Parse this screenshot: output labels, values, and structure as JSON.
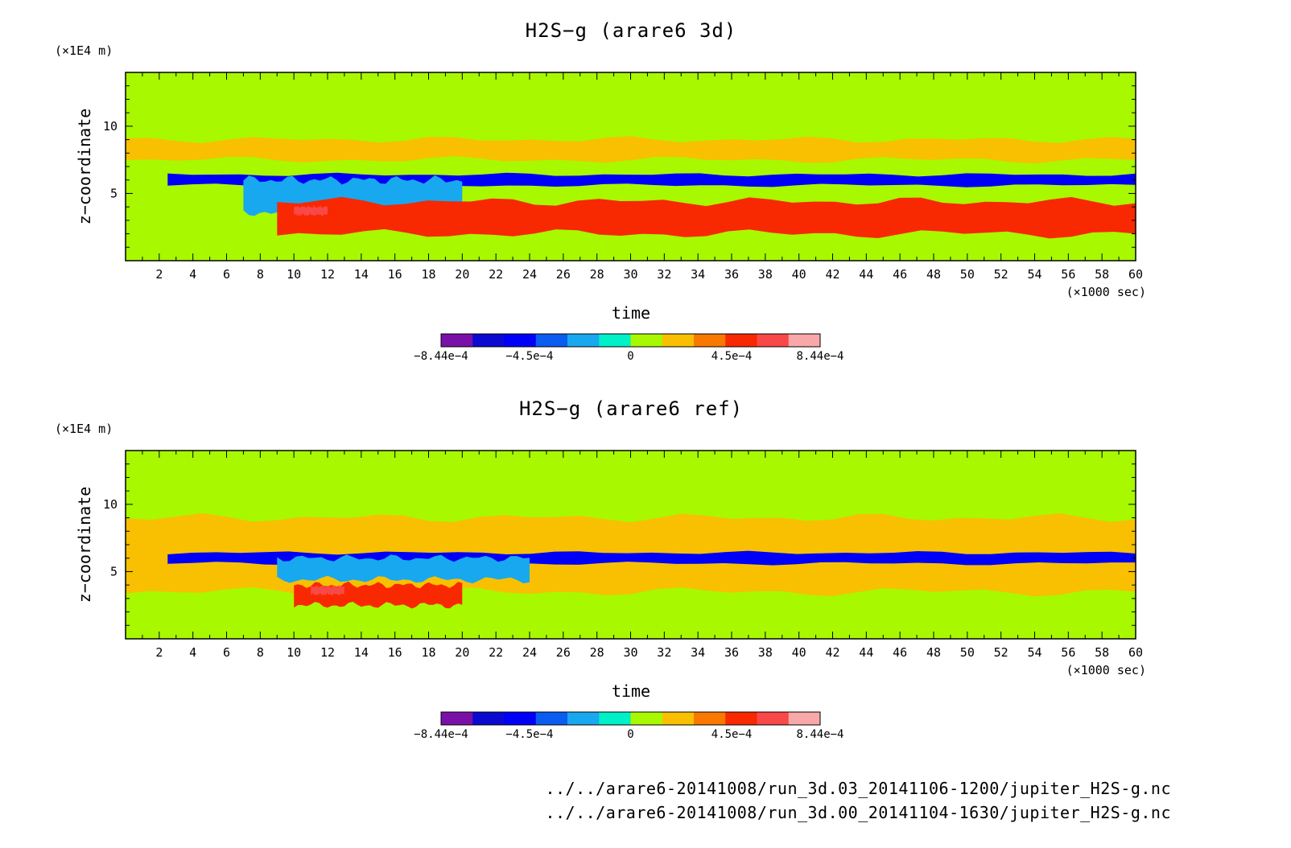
{
  "chart_data": [
    {
      "type": "heatmap",
      "title": "H2S−g (arare6 3d)",
      "xlabel": "time",
      "x_unit": "(×1000 sec)",
      "ylabel": "z−coordinate",
      "y_unit": "(×1E4 m)",
      "xlim": [
        0,
        60
      ],
      "ylim": [
        0,
        14
      ],
      "x_ticks": [
        "2",
        "4",
        "6",
        "8",
        "10",
        "12",
        "14",
        "16",
        "18",
        "20",
        "22",
        "24",
        "26",
        "28",
        "30",
        "32",
        "34",
        "36",
        "38",
        "40",
        "42",
        "44",
        "46",
        "48",
        "50",
        "52",
        "54",
        "56",
        "58",
        "60"
      ],
      "y_ticks": [
        "5",
        "10"
      ],
      "background_level": 0,
      "features": [
        {
          "desc": "positive layer",
          "value": 0.00015,
          "x": [
            0,
            60
          ],
          "y": [
            7.5,
            9
          ]
        },
        {
          "desc": "negative band",
          "value": -0.0006,
          "x": [
            2.5,
            60
          ],
          "y": [
            5.6,
            6.4
          ]
        },
        {
          "desc": "negative patch",
          "value": -0.0002,
          "x": [
            7,
            20
          ],
          "y": [
            3.6,
            6
          ]
        },
        {
          "desc": "positive band",
          "value": 0.00045,
          "x": [
            9,
            60
          ],
          "y": [
            2,
            4.4
          ]
        },
        {
          "desc": "peak",
          "value": 0.00065,
          "x": [
            10,
            12
          ],
          "y": [
            3.4,
            4
          ]
        }
      ],
      "colorbar": {
        "levels": [
          -0.000844,
          -0.00072,
          -0.0006,
          -0.00045,
          -0.0003,
          -0.00015,
          0,
          0.00015,
          0.0003,
          0.00045,
          0.0006,
          0.00072,
          0.000844
        ],
        "colors": [
          "#7a10a8",
          "#0a0ad0",
          "#0000f8",
          "#0b5cf0",
          "#18a8f0",
          "#00f0c8",
          "#a8f800",
          "#f8c000",
          "#f87800",
          "#f82800",
          "#f84848",
          "#f8a8a8"
        ],
        "tick_labels": [
          "−8.44e−4",
          "−4.5e−4",
          "0",
          "4.5e−4",
          "8.44e−4"
        ]
      }
    },
    {
      "type": "heatmap",
      "title": "H2S−g (arare6 ref)",
      "xlabel": "time",
      "x_unit": "(×1000 sec)",
      "ylabel": "z−coordinate",
      "y_unit": "(×1E4 m)",
      "xlim": [
        0,
        60
      ],
      "ylim": [
        0,
        14
      ],
      "x_ticks": [
        "2",
        "4",
        "6",
        "8",
        "10",
        "12",
        "14",
        "16",
        "18",
        "20",
        "22",
        "24",
        "26",
        "28",
        "30",
        "32",
        "34",
        "36",
        "38",
        "40",
        "42",
        "44",
        "46",
        "48",
        "50",
        "52",
        "54",
        "56",
        "58",
        "60"
      ],
      "y_ticks": [
        "5",
        "10"
      ],
      "background_level": 0,
      "features": [
        {
          "desc": "positive layer",
          "value": 0.00015,
          "x": [
            0,
            60
          ],
          "y": [
            3.5,
            9
          ]
        },
        {
          "desc": "negative band",
          "value": -0.0006,
          "x": [
            2.5,
            60
          ],
          "y": [
            5.6,
            6.4
          ]
        },
        {
          "desc": "negative patch",
          "value": -0.0002,
          "x": [
            9,
            24
          ],
          "y": [
            4.4,
            6
          ]
        },
        {
          "desc": "positive patch",
          "value": 0.00045,
          "x": [
            10,
            20
          ],
          "y": [
            2.5,
            4
          ]
        },
        {
          "desc": "peak",
          "value": 0.00065,
          "x": [
            11,
            13
          ],
          "y": [
            3.3,
            3.9
          ]
        }
      ],
      "colorbar": {
        "levels": [
          -0.000844,
          -0.00072,
          -0.0006,
          -0.00045,
          -0.0003,
          -0.00015,
          0,
          0.00015,
          0.0003,
          0.00045,
          0.0006,
          0.00072,
          0.000844
        ],
        "colors": [
          "#7a10a8",
          "#0a0ad0",
          "#0000f8",
          "#0b5cf0",
          "#18a8f0",
          "#00f0c8",
          "#a8f800",
          "#f8c000",
          "#f87800",
          "#f82800",
          "#f84848",
          "#f8a8a8"
        ],
        "tick_labels": [
          "−8.44e−4",
          "−4.5e−4",
          "0",
          "4.5e−4",
          "8.44e−4"
        ]
      }
    }
  ],
  "footer": {
    "file_3d": "../../arare6-20141008/run_3d.03_20141106-1200/jupiter_H2S-g.nc",
    "file_ref": "../../arare6-20141008/run_3d.00_20141104-1630/jupiter_H2S-g.nc"
  }
}
